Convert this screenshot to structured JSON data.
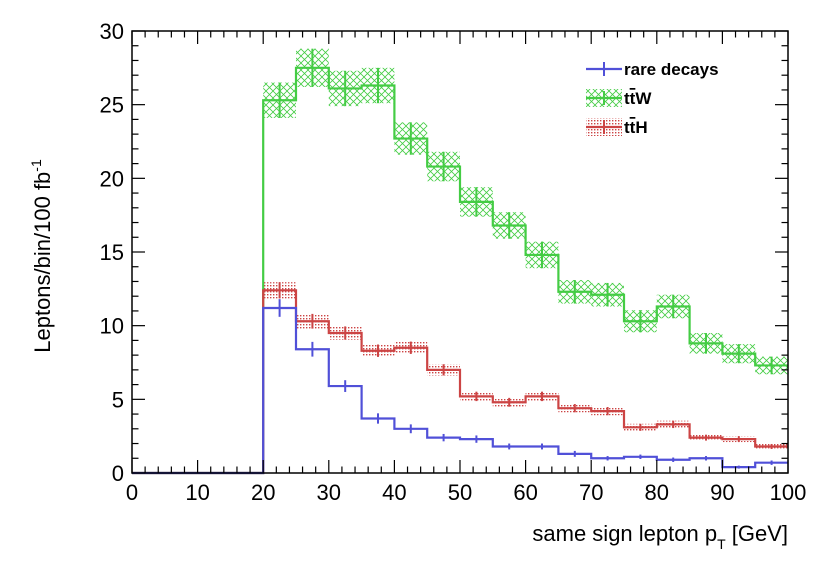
{
  "chart_data": {
    "type": "histogram",
    "xlabel": "same sign lepton p",
    "xlabel_subscript": "T",
    "xlabel_unit": "[GeV]",
    "ylabel": "Leptons/bin/100 fb",
    "ylabel_superscript": "-1",
    "xlim": [
      0,
      100
    ],
    "ylim": [
      0,
      30
    ],
    "x_ticks": [
      0,
      10,
      20,
      30,
      40,
      50,
      60,
      70,
      80,
      90,
      100
    ],
    "y_ticks": [
      0,
      5,
      10,
      15,
      20,
      25,
      30
    ],
    "bin_edges": [
      0,
      5,
      10,
      15,
      20,
      25,
      30,
      35,
      40,
      45,
      50,
      55,
      60,
      65,
      70,
      75,
      80,
      85,
      90,
      95,
      100
    ],
    "legend_position": "top-right",
    "series": [
      {
        "name": "rare decays",
        "label_main": "rare decays",
        "label_bar": "",
        "label_tail": "",
        "color": "#5050d8",
        "values": [
          0,
          0,
          0,
          0,
          11.2,
          8.4,
          5.9,
          3.7,
          3.0,
          2.4,
          2.3,
          1.8,
          1.8,
          1.3,
          1.0,
          1.1,
          0.9,
          1.0,
          0.4,
          0.7
        ],
        "errors": [
          0,
          0,
          0,
          0,
          0.6,
          0.5,
          0.4,
          0.35,
          0.3,
          0.25,
          0.25,
          0.2,
          0.2,
          0.2,
          0.15,
          0.15,
          0.15,
          0.15,
          0.1,
          0.15
        ],
        "band": false
      },
      {
        "name": "ttW",
        "label_main": "t",
        "label_bar": "t",
        "label_tail": "W",
        "color": "#44cc44",
        "values": [
          0,
          0,
          0,
          0,
          25.3,
          27.5,
          26.1,
          26.3,
          22.7,
          20.8,
          18.4,
          16.8,
          14.8,
          12.3,
          12.1,
          10.3,
          11.3,
          8.8,
          8.1,
          7.3
        ],
        "errors": [
          0,
          0,
          0,
          0,
          1.2,
          1.3,
          1.2,
          1.2,
          1.1,
          1.0,
          1.0,
          0.9,
          0.9,
          0.8,
          0.8,
          0.75,
          0.8,
          0.7,
          0.65,
          0.6
        ],
        "band": true
      },
      {
        "name": "ttH",
        "label_main": "t",
        "label_bar": "t",
        "label_tail": "H",
        "color": "#cc4444",
        "values": [
          0,
          0,
          0,
          0,
          12.4,
          10.3,
          9.5,
          8.3,
          8.5,
          7.0,
          5.2,
          4.8,
          5.2,
          4.4,
          4.2,
          3.1,
          3.3,
          2.4,
          2.3,
          1.8
        ],
        "errors": [
          0,
          0,
          0,
          0,
          0.55,
          0.5,
          0.45,
          0.42,
          0.42,
          0.38,
          0.32,
          0.3,
          0.32,
          0.28,
          0.28,
          0.24,
          0.25,
          0.2,
          0.2,
          0.17
        ],
        "band": true
      }
    ]
  }
}
